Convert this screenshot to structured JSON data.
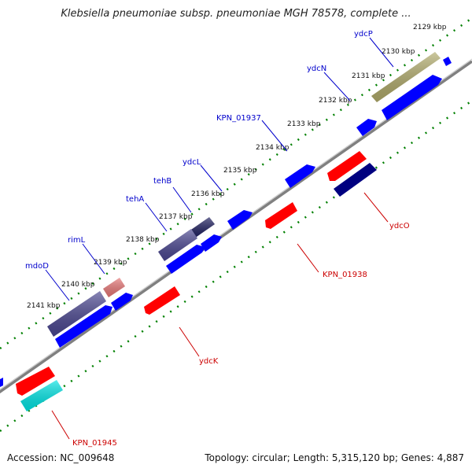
{
  "title": "Klebsiella pneumoniae subsp. pneumoniae MGH 78578, complete ...",
  "footer": {
    "accession": "Accession: NC_009648",
    "topology": "Topology: circular; Length: 5,315,120 bp; Genes: 4,887"
  },
  "ticks": [
    "2129 kbp",
    "2130 kbp",
    "2131 kbp",
    "2132 kbp",
    "2133 kbp",
    "2134 kbp",
    "2135 kbp",
    "2136 kbp",
    "2137 kbp",
    "2138 kbp",
    "2139 kbp",
    "2140 kbp",
    "2141 kbp"
  ],
  "gene_labels": {
    "ydcP": "ydcP",
    "ydcN": "ydcN",
    "KPN_01937": "KPN_01937",
    "ydcL": "ydcL",
    "tehB": "tehB",
    "tehA": "tehA",
    "rimL": "rimL",
    "mdoD": "mdoD",
    "ydcO": "ydcO",
    "KPN_01938": "KPN_01938",
    "ydcK": "ydcK",
    "KPN_01945": "KPN_01945"
  },
  "colors": {
    "forward_strand_label": "#0000cc",
    "reverse_strand_label": "#cc0000",
    "forward_gene": "#0000ff",
    "reverse_gene": "#ff0000",
    "backbone": "#808080",
    "tick_marks": "#008000"
  }
}
